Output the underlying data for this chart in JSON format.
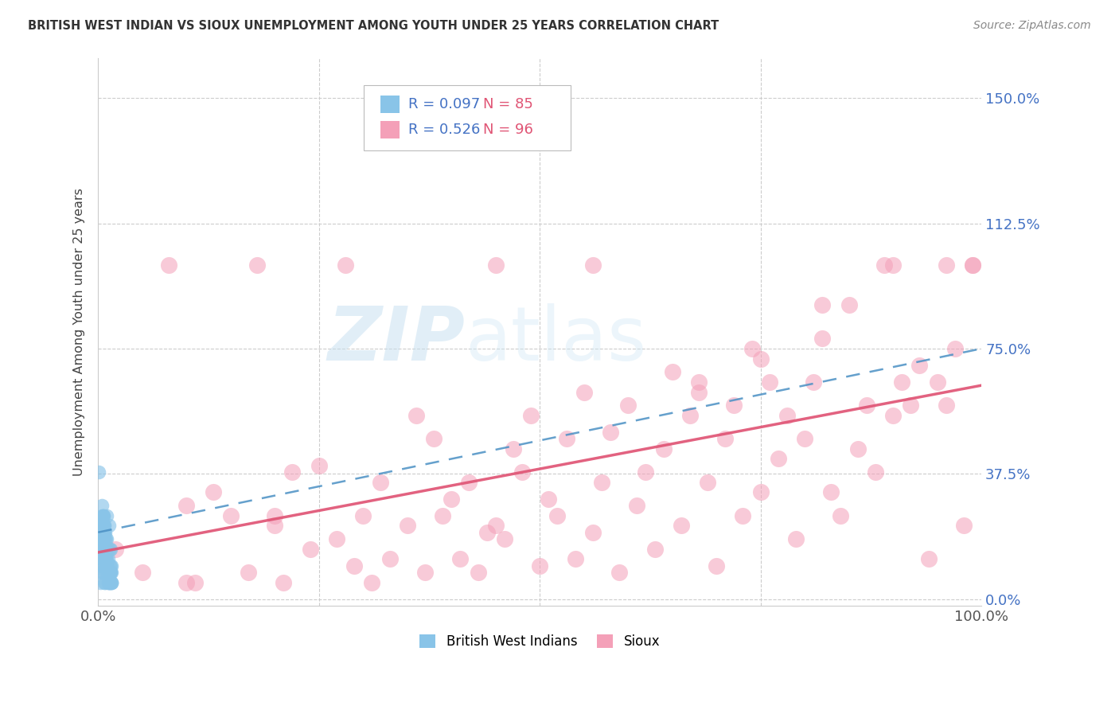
{
  "title": "BRITISH WEST INDIAN VS SIOUX UNEMPLOYMENT AMONG YOUTH UNDER 25 YEARS CORRELATION CHART",
  "source": "Source: ZipAtlas.com",
  "ylabel": "Unemployment Among Youth under 25 years",
  "ytick_labels": [
    "0.0%",
    "37.5%",
    "75.0%",
    "112.5%",
    "150.0%"
  ],
  "ytick_vals": [
    0.0,
    37.5,
    75.0,
    112.5,
    150.0
  ],
  "xtick_labels": [
    "0.0%",
    "100.0%"
  ],
  "xtick_vals": [
    0,
    100
  ],
  "xlim": [
    0,
    100
  ],
  "ylim": [
    -2,
    162
  ],
  "legend1_r": "0.097",
  "legend1_n": "85",
  "legend2_r": "0.526",
  "legend2_n": "96",
  "blue_scatter_color": "#89c4e8",
  "pink_scatter_color": "#f4a0b8",
  "blue_line_color": "#4a90c4",
  "pink_line_color": "#e05575",
  "title_color": "#333333",
  "source_color": "#888888",
  "axis_tick_color": "#4472c4",
  "grid_color": "#cccccc",
  "legend_r_color": "#4472c4",
  "legend_n_color": "#e05575",
  "bottom_legend_labels": [
    "British West Indians",
    "Sioux"
  ],
  "sioux_x": [
    2.0,
    5.0,
    8.0,
    10.0,
    11.0,
    13.0,
    15.0,
    17.0,
    18.0,
    20.0,
    21.0,
    22.0,
    24.0,
    25.0,
    27.0,
    28.0,
    29.0,
    30.0,
    31.0,
    32.0,
    33.0,
    35.0,
    36.0,
    37.0,
    38.0,
    39.0,
    40.0,
    41.0,
    42.0,
    43.0,
    44.0,
    45.0,
    46.0,
    47.0,
    48.0,
    49.0,
    50.0,
    51.0,
    52.0,
    53.0,
    54.0,
    55.0,
    56.0,
    57.0,
    58.0,
    59.0,
    60.0,
    61.0,
    62.0,
    63.0,
    64.0,
    65.0,
    66.0,
    67.0,
    68.0,
    69.0,
    70.0,
    71.0,
    72.0,
    73.0,
    74.0,
    75.0,
    76.0,
    77.0,
    78.0,
    79.0,
    80.0,
    81.0,
    82.0,
    83.0,
    84.0,
    85.0,
    86.0,
    87.0,
    88.0,
    89.0,
    90.0,
    91.0,
    92.0,
    93.0,
    94.0,
    95.0,
    96.0,
    97.0,
    98.0,
    99.0,
    10.0,
    20.0,
    45.0,
    56.0,
    68.0,
    75.0,
    82.0,
    90.0,
    96.0,
    99.0
  ],
  "sioux_y": [
    15.0,
    8.0,
    100.0,
    28.0,
    5.0,
    32.0,
    25.0,
    8.0,
    100.0,
    22.0,
    5.0,
    38.0,
    15.0,
    40.0,
    18.0,
    100.0,
    10.0,
    25.0,
    5.0,
    35.0,
    12.0,
    22.0,
    55.0,
    8.0,
    48.0,
    25.0,
    30.0,
    12.0,
    35.0,
    8.0,
    20.0,
    100.0,
    18.0,
    45.0,
    38.0,
    55.0,
    10.0,
    30.0,
    25.0,
    48.0,
    12.0,
    62.0,
    20.0,
    35.0,
    50.0,
    8.0,
    58.0,
    28.0,
    38.0,
    15.0,
    45.0,
    68.0,
    22.0,
    55.0,
    62.0,
    35.0,
    10.0,
    48.0,
    58.0,
    25.0,
    75.0,
    32.0,
    65.0,
    42.0,
    55.0,
    18.0,
    48.0,
    65.0,
    78.0,
    32.0,
    25.0,
    88.0,
    45.0,
    58.0,
    38.0,
    100.0,
    55.0,
    65.0,
    58.0,
    70.0,
    12.0,
    65.0,
    58.0,
    75.0,
    22.0,
    100.0,
    5.0,
    25.0,
    22.0,
    100.0,
    65.0,
    72.0,
    88.0,
    100.0,
    100.0,
    100.0
  ],
  "bwi_x": [
    0.1,
    0.2,
    0.3,
    0.4,
    0.5,
    0.6,
    0.7,
    0.8,
    0.9,
    1.0,
    1.1,
    1.2,
    1.3,
    1.4,
    1.5,
    0.5,
    0.8,
    1.2,
    1.5,
    0.3,
    0.6,
    1.0,
    1.3,
    0.4,
    0.7,
    1.1,
    0.2,
    0.9,
    1.4,
    0.5,
    0.1,
    0.6,
    1.0,
    1.3,
    0.8,
    0.4,
    1.2,
    0.7,
    0.3,
    1.5,
    0.9,
    0.5,
    1.1,
    0.2,
    0.8,
    1.3,
    0.6,
    1.0,
    0.4,
    1.4,
    0.7,
    0.3,
    1.2,
    0.9,
    0.5,
    1.5,
    0.8,
    0.4,
    1.1,
    0.6,
    0.2,
    1.0,
    1.3,
    0.7,
    0.5,
    1.4,
    0.9,
    0.3,
    1.2,
    0.6,
    1.0,
    0.4,
    0.8,
    1.1,
    0.2,
    0.7,
    1.3,
    0.5,
    0.9,
    1.5,
    0.6,
    0.3,
    1.0,
    0.8,
    0.1
  ],
  "bwi_y": [
    38.0,
    5.0,
    8.0,
    12.0,
    15.0,
    8.0,
    20.0,
    5.0,
    10.0,
    18.0,
    5.0,
    22.0,
    8.0,
    15.0,
    10.0,
    25.0,
    12.0,
    8.0,
    5.0,
    18.0,
    22.0,
    15.0,
    10.0,
    28.0,
    5.0,
    12.0,
    20.0,
    18.0,
    8.0,
    15.0,
    22.0,
    10.0,
    25.0,
    5.0,
    18.0,
    12.0,
    8.0,
    20.0,
    15.0,
    5.0,
    10.0,
    22.0,
    8.0,
    18.0,
    12.0,
    15.0,
    25.0,
    10.0,
    20.0,
    8.0,
    15.0,
    22.0,
    5.0,
    12.0,
    18.0,
    8.0,
    20.0,
    10.0,
    15.0,
    25.0,
    18.0,
    8.0,
    5.0,
    22.0,
    12.0,
    10.0,
    15.0,
    20.0,
    8.0,
    18.0,
    12.0,
    25.0,
    10.0,
    5.0,
    15.0,
    22.0,
    8.0,
    18.0,
    12.0,
    5.0,
    20.0,
    15.0,
    10.0,
    8.0,
    22.0
  ]
}
